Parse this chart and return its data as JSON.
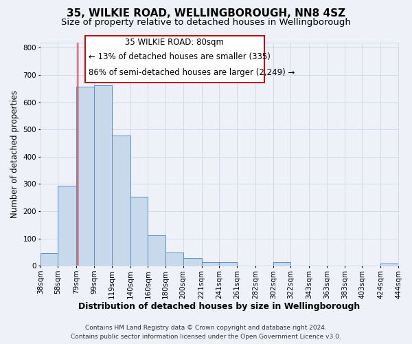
{
  "title": "35, WILKIE ROAD, WELLINGBOROUGH, NN8 4SZ",
  "subtitle": "Size of property relative to detached houses in Wellingborough",
  "xlabel": "Distribution of detached houses by size in Wellingborough",
  "ylabel": "Number of detached properties",
  "footer_line1": "Contains HM Land Registry data © Crown copyright and database right 2024.",
  "footer_line2": "Contains public sector information licensed under the Open Government Licence v3.0.",
  "bin_edges": [
    38,
    58,
    79,
    99,
    119,
    140,
    160,
    180,
    200,
    221,
    241,
    261,
    282,
    302,
    322,
    343,
    363,
    383,
    403,
    424,
    444
  ],
  "bin_labels": [
    "38sqm",
    "58sqm",
    "79sqm",
    "99sqm",
    "119sqm",
    "140sqm",
    "160sqm",
    "180sqm",
    "200sqm",
    "221sqm",
    "241sqm",
    "261sqm",
    "282sqm",
    "302sqm",
    "322sqm",
    "343sqm",
    "363sqm",
    "383sqm",
    "403sqm",
    "424sqm",
    "444sqm"
  ],
  "bar_heights": [
    47,
    293,
    657,
    663,
    477,
    252,
    113,
    49,
    28,
    14,
    14,
    0,
    0,
    13,
    0,
    0,
    0,
    0,
    0,
    7
  ],
  "bar_color": "#c9d9ec",
  "bar_edge_color": "#5a8fc2",
  "vline_x": 80,
  "vline_color": "#cc0000",
  "annot_line1": "35 WILKIE ROAD: 80sqm",
  "annot_line2": "← 13% of detached houses are smaller (335)",
  "annot_line3": "86% of semi-detached houses are larger (2,249) →",
  "box_edge_color": "#cc0000",
  "ylim": [
    0,
    820
  ],
  "yticks": [
    0,
    100,
    200,
    300,
    400,
    500,
    600,
    700,
    800
  ],
  "grid_color": "#d0daea",
  "background_color": "#eef2f8",
  "title_fontsize": 11,
  "subtitle_fontsize": 9.5,
  "xlabel_fontsize": 9,
  "ylabel_fontsize": 8.5,
  "tick_fontsize": 7.5,
  "annotation_fontsize": 8.5,
  "footer_fontsize": 6.5
}
